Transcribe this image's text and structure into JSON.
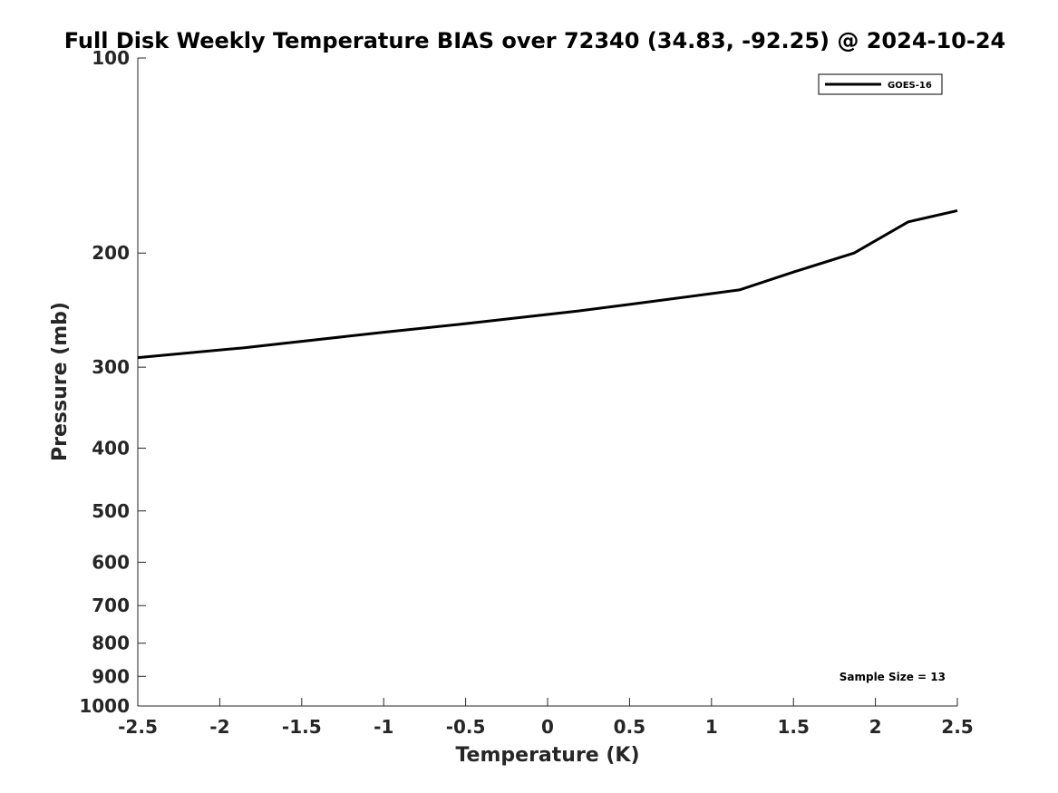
{
  "chart_data": {
    "type": "line",
    "title": "Full Disk Weekly Temperature BIAS over 72340 (34.83, -92.25) @ 2024-10-24",
    "xlabel": "Temperature (K)",
    "ylabel": "Pressure (mb)",
    "xlim": [
      -2.5,
      2.5
    ],
    "ylim": [
      100,
      1000
    ],
    "y_scale": "log",
    "y_reversed": true,
    "x_ticks": [
      "-2.5",
      "-2",
      "-1.5",
      "-1",
      "-0.5",
      "0",
      "0.5",
      "1",
      "1.5",
      "2",
      "2.5"
    ],
    "y_ticks": [
      "100",
      "200",
      "300",
      "400",
      "500",
      "600",
      "700",
      "800",
      "900",
      "1000"
    ],
    "grid": false,
    "legend_position": "top-right",
    "series": [
      {
        "name": "GOES-16",
        "color": "#000000",
        "points": [
          {
            "x": -2.5,
            "p": 290
          },
          {
            "x": -1.85,
            "p": 280
          },
          {
            "x": -1.0,
            "p": 265
          },
          {
            "x": -0.5,
            "p": 257
          },
          {
            "x": 0.17,
            "p": 246
          },
          {
            "x": 0.5,
            "p": 240
          },
          {
            "x": 1.17,
            "p": 228
          },
          {
            "x": 1.5,
            "p": 214
          },
          {
            "x": 1.87,
            "p": 200
          },
          {
            "x": 2.2,
            "p": 179
          },
          {
            "x": 2.5,
            "p": 172
          }
        ]
      }
    ],
    "annotation": "Sample Size = 13"
  }
}
